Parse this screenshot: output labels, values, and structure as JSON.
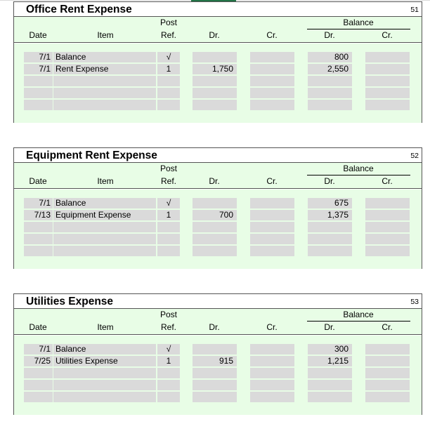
{
  "headers": {
    "date": "Date",
    "item": "Item",
    "post": "Post",
    "ref": "Ref.",
    "dr": "Dr.",
    "cr": "Cr.",
    "balance": "Balance",
    "bal_dr": "Dr.",
    "bal_cr": "Cr."
  },
  "ledgers": [
    {
      "title": "Office Rent Expense",
      "number": "51",
      "rows": [
        {
          "date": "7/1",
          "item": "Balance",
          "ref": "√",
          "dr": "",
          "cr": "",
          "bal_dr": "800",
          "bal_cr": ""
        },
        {
          "date": "7/1",
          "item": "Rent Expense",
          "ref": "1",
          "dr": "1,750",
          "cr": "",
          "bal_dr": "2,550",
          "bal_cr": ""
        },
        {
          "date": "",
          "item": "",
          "ref": "",
          "dr": "",
          "cr": "",
          "bal_dr": "",
          "bal_cr": ""
        },
        {
          "date": "",
          "item": "",
          "ref": "",
          "dr": "",
          "cr": "",
          "bal_dr": "",
          "bal_cr": ""
        },
        {
          "date": "",
          "item": "",
          "ref": "",
          "dr": "",
          "cr": "",
          "bal_dr": "",
          "bal_cr": ""
        }
      ]
    },
    {
      "title": "Equipment Rent Expense",
      "number": "52",
      "rows": [
        {
          "date": "7/1",
          "item": "Balance",
          "ref": "√",
          "dr": "",
          "cr": "",
          "bal_dr": "675",
          "bal_cr": ""
        },
        {
          "date": "7/13",
          "item": "Equipment Expense",
          "ref": "1",
          "dr": "700",
          "cr": "",
          "bal_dr": "1,375",
          "bal_cr": ""
        },
        {
          "date": "",
          "item": "",
          "ref": "",
          "dr": "",
          "cr": "",
          "bal_dr": "",
          "bal_cr": ""
        },
        {
          "date": "",
          "item": "",
          "ref": "",
          "dr": "",
          "cr": "",
          "bal_dr": "",
          "bal_cr": ""
        },
        {
          "date": "",
          "item": "",
          "ref": "",
          "dr": "",
          "cr": "",
          "bal_dr": "",
          "bal_cr": ""
        }
      ]
    },
    {
      "title": "Utilities Expense",
      "number": "53",
      "rows": [
        {
          "date": "7/1",
          "item": "Balance",
          "ref": "√",
          "dr": "",
          "cr": "",
          "bal_dr": "300",
          "bal_cr": ""
        },
        {
          "date": "7/25",
          "item": "Utilities Expense",
          "ref": "1",
          "dr": "915",
          "cr": "",
          "bal_dr": "1,215",
          "bal_cr": ""
        },
        {
          "date": "",
          "item": "",
          "ref": "",
          "dr": "",
          "cr": "",
          "bal_dr": "",
          "bal_cr": ""
        },
        {
          "date": "",
          "item": "",
          "ref": "",
          "dr": "",
          "cr": "",
          "bal_dr": "",
          "bal_cr": ""
        },
        {
          "date": "",
          "item": "",
          "ref": "",
          "dr": "",
          "cr": "",
          "bal_dr": "",
          "bal_cr": ""
        }
      ]
    }
  ]
}
